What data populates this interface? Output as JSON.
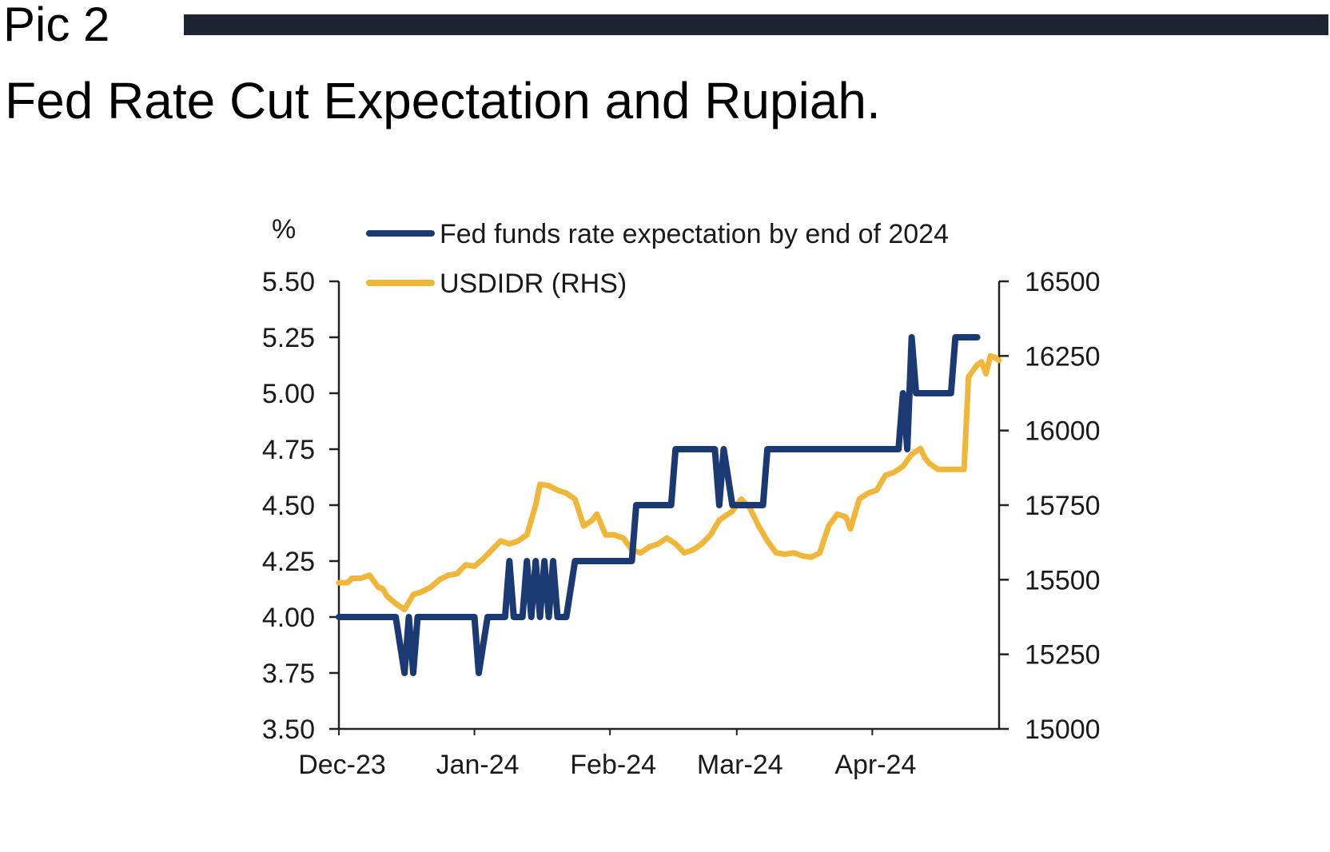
{
  "header": {
    "pic_label": "Pic 2",
    "title": "Fed Rate Cut Expectation and Rupiah."
  },
  "chart_data": {
    "type": "line",
    "title": "Fed Rate Cut Expectation and Rupiah.",
    "y_left_label": "%",
    "y_left_range": [
      3.5,
      5.5
    ],
    "y_left_ticks": [
      "5.50",
      "5.25",
      "5.00",
      "4.75",
      "4.50",
      "4.25",
      "4.00",
      "3.75",
      "3.50"
    ],
    "y_right_range": [
      15000,
      16500
    ],
    "y_right_ticks": [
      "16500",
      "16250",
      "16000",
      "15750",
      "15500",
      "15250",
      "15000"
    ],
    "x_range_days": [
      0,
      146
    ],
    "x_ticks": [
      {
        "label": "Dec-23",
        "day": 0
      },
      {
        "label": "Jan-24",
        "day": 31
      },
      {
        "label": "Feb-24",
        "day": 62
      },
      {
        "label": "Mar-24",
        "day": 91
      },
      {
        "label": "Apr-24",
        "day": 122
      }
    ],
    "grid": false,
    "legend_position": "top-left",
    "series": [
      {
        "name": "Fed funds rate expectation by end of 2024",
        "axis": "left",
        "color": "#1b3a73",
        "points": [
          [
            0,
            4.0
          ],
          [
            13,
            4.0
          ],
          [
            15,
            3.75
          ],
          [
            16,
            4.0
          ],
          [
            17,
            3.75
          ],
          [
            18,
            4.0
          ],
          [
            31,
            4.0
          ],
          [
            32,
            3.75
          ],
          [
            34,
            4.0
          ],
          [
            38,
            4.0
          ],
          [
            39,
            4.25
          ],
          [
            40,
            4.0
          ],
          [
            42,
            4.0
          ],
          [
            43,
            4.25
          ],
          [
            44,
            4.0
          ],
          [
            45,
            4.25
          ],
          [
            46,
            4.0
          ],
          [
            47,
            4.25
          ],
          [
            48,
            4.0
          ],
          [
            49,
            4.25
          ],
          [
            50,
            4.0
          ],
          [
            52,
            4.0
          ],
          [
            54,
            4.25
          ],
          [
            67,
            4.25
          ],
          [
            68,
            4.5
          ],
          [
            76,
            4.5
          ],
          [
            77,
            4.75
          ],
          [
            86,
            4.75
          ],
          [
            87,
            4.5
          ],
          [
            88,
            4.75
          ],
          [
            90,
            4.5
          ],
          [
            97,
            4.5
          ],
          [
            98,
            4.75
          ],
          [
            128,
            4.75
          ],
          [
            129,
            5.0
          ],
          [
            130,
            4.75
          ],
          [
            131,
            5.25
          ],
          [
            132,
            5.0
          ],
          [
            140,
            5.0
          ],
          [
            141,
            5.25
          ],
          [
            146,
            5.25
          ]
        ]
      },
      {
        "name": "USDIDR (RHS)",
        "axis": "right",
        "color": "#f0b63a",
        "points": [
          [
            0,
            15490
          ],
          [
            2,
            15490
          ],
          [
            3,
            15505
          ],
          [
            5,
            15505
          ],
          [
            7,
            15515
          ],
          [
            9,
            15475
          ],
          [
            10,
            15470
          ],
          [
            11,
            15445
          ],
          [
            13,
            15420
          ],
          [
            15,
            15400
          ],
          [
            17,
            15450
          ],
          [
            19,
            15460
          ],
          [
            21,
            15475
          ],
          [
            23,
            15500
          ],
          [
            25,
            15515
          ],
          [
            27,
            15520
          ],
          [
            29,
            15550
          ],
          [
            31,
            15545
          ],
          [
            33,
            15570
          ],
          [
            35,
            15600
          ],
          [
            37,
            15630
          ],
          [
            39,
            15620
          ],
          [
            41,
            15630
          ],
          [
            43,
            15650
          ],
          [
            45,
            15750
          ],
          [
            46,
            15820
          ],
          [
            48,
            15815
          ],
          [
            50,
            15800
          ],
          [
            52,
            15790
          ],
          [
            54,
            15770
          ],
          [
            56,
            15680
          ],
          [
            58,
            15700
          ],
          [
            59,
            15720
          ],
          [
            61,
            15650
          ],
          [
            63,
            15650
          ],
          [
            65,
            15640
          ],
          [
            67,
            15600
          ],
          [
            69,
            15590
          ],
          [
            71,
            15610
          ],
          [
            73,
            15620
          ],
          [
            75,
            15640
          ],
          [
            77,
            15620
          ],
          [
            79,
            15590
          ],
          [
            81,
            15600
          ],
          [
            83,
            15620
          ],
          [
            85,
            15650
          ],
          [
            87,
            15700
          ],
          [
            89,
            15720
          ],
          [
            90,
            15730
          ],
          [
            92,
            15770
          ],
          [
            94,
            15740
          ],
          [
            96,
            15680
          ],
          [
            98,
            15630
          ],
          [
            100,
            15590
          ],
          [
            102,
            15585
          ],
          [
            104,
            15590
          ],
          [
            106,
            15580
          ],
          [
            108,
            15575
          ],
          [
            110,
            15590
          ],
          [
            112,
            15680
          ],
          [
            114,
            15720
          ],
          [
            116,
            15710
          ],
          [
            117,
            15670
          ],
          [
            119,
            15770
          ],
          [
            121,
            15790
          ],
          [
            123,
            15800
          ],
          [
            125,
            15850
          ],
          [
            127,
            15860
          ],
          [
            129,
            15880
          ],
          [
            131,
            15920
          ],
          [
            133,
            15940
          ],
          [
            134,
            15910
          ],
          [
            135,
            15890
          ],
          [
            137,
            15870
          ],
          [
            139,
            15870
          ],
          [
            143,
            15870
          ],
          [
            144,
            16180
          ],
          [
            146,
            16220
          ],
          [
            147,
            16230
          ],
          [
            148,
            16190
          ],
          [
            149,
            16250
          ],
          [
            150,
            16245
          ],
          [
            151,
            16235
          ]
        ]
      }
    ]
  }
}
